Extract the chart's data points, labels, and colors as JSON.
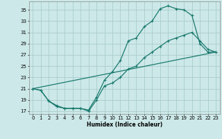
{
  "xlabel": "Humidex (Indice chaleur)",
  "bg_color": "#cce8e8",
  "grid_color": "#aacccc",
  "line_color": "#1a7a6e",
  "xlim": [
    -0.5,
    23.5
  ],
  "ylim": [
    16.5,
    36.5
  ],
  "yticks": [
    17,
    19,
    21,
    23,
    25,
    27,
    29,
    31,
    33,
    35
  ],
  "xticks": [
    0,
    1,
    2,
    3,
    4,
    5,
    6,
    7,
    8,
    9,
    10,
    11,
    12,
    13,
    14,
    15,
    16,
    17,
    18,
    19,
    20,
    21,
    22,
    23
  ],
  "line1_x": [
    0,
    1,
    2,
    3,
    4,
    5,
    6,
    7,
    8,
    9,
    10,
    11,
    12,
    13,
    14,
    15,
    16,
    17,
    18,
    19,
    20,
    21,
    22,
    23
  ],
  "line1_y": [
    21.0,
    20.7,
    18.8,
    17.8,
    17.5,
    17.5,
    17.5,
    17.0,
    19.0,
    21.5,
    22.0,
    23.0,
    24.5,
    25.0,
    26.5,
    27.5,
    28.5,
    29.5,
    30.0,
    30.5,
    31.0,
    29.5,
    28.0,
    27.5
  ],
  "line2_x": [
    0,
    1,
    2,
    3,
    4,
    5,
    6,
    7,
    8,
    9,
    10,
    11,
    12,
    13,
    14,
    15,
    16,
    17,
    18,
    19,
    20,
    21,
    22,
    23
  ],
  "line2_y": [
    21.0,
    20.7,
    18.8,
    18.0,
    17.5,
    17.5,
    17.5,
    17.2,
    19.5,
    22.5,
    24.0,
    26.0,
    29.5,
    30.0,
    32.0,
    33.0,
    35.2,
    35.7,
    35.2,
    35.0,
    34.0,
    29.0,
    27.5,
    27.5
  ],
  "line3_x": [
    0,
    23
  ],
  "line3_y": [
    21.0,
    27.5
  ]
}
